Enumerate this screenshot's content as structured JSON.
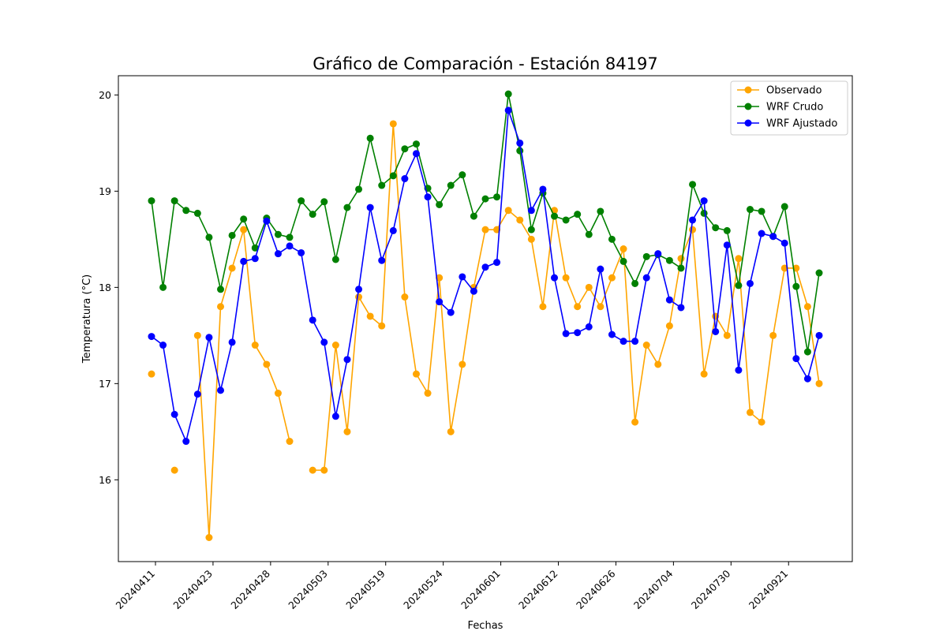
{
  "chart_data": {
    "type": "line",
    "title": "Gráfico de Comparación - Estación 84197",
    "xlabel": "Fechas",
    "ylabel": "Temperatura (°C)",
    "ylim": [
      15.15,
      20.2
    ],
    "yticks": [
      16,
      17,
      18,
      19,
      20
    ],
    "xtick_labels": [
      "20240411",
      "20240423",
      "20240428",
      "20240503",
      "20240519",
      "20240524",
      "20240601",
      "20240612",
      "20240626",
      "20240704",
      "20240730",
      "20240921"
    ],
    "xtick_every": 5,
    "grid": false,
    "legend_position": "top-right",
    "marker": "circle",
    "series": [
      {
        "name": "Observado",
        "color": "#ffa500",
        "values": [
          17.1,
          null,
          16.1,
          null,
          17.5,
          15.4,
          17.8,
          18.2,
          18.6,
          17.4,
          17.2,
          16.9,
          16.4,
          null,
          16.1,
          16.1,
          17.4,
          16.5,
          17.9,
          17.7,
          17.6,
          19.7,
          17.9,
          17.1,
          16.9,
          18.1,
          16.5,
          17.2,
          18.0,
          18.6,
          18.6,
          18.8,
          18.7,
          18.5,
          17.8,
          18.8,
          18.1,
          17.8,
          18.0,
          17.8,
          18.1,
          18.4,
          16.6,
          17.4,
          17.2,
          17.6,
          18.3,
          18.6,
          17.1,
          17.7,
          17.5,
          18.3,
          16.7,
          16.6,
          17.5,
          18.2,
          18.2,
          17.8,
          17.0
        ]
      },
      {
        "name": "WRF Crudo",
        "color": "#008000",
        "values": [
          18.9,
          18.0,
          18.9,
          18.8,
          18.77,
          18.52,
          17.98,
          18.54,
          18.71,
          18.41,
          18.72,
          18.55,
          18.52,
          18.9,
          18.76,
          18.89,
          18.29,
          18.83,
          19.02,
          19.55,
          19.06,
          19.16,
          19.44,
          19.49,
          19.03,
          18.86,
          19.06,
          19.17,
          18.74,
          18.92,
          18.94,
          20.01,
          19.42,
          18.6,
          18.98,
          18.74,
          18.7,
          18.76,
          18.55,
          18.79,
          18.5,
          18.27,
          18.04,
          18.32,
          18.34,
          18.28,
          18.2,
          19.07,
          18.77,
          18.62,
          18.59,
          18.02,
          18.81,
          18.79,
          18.53,
          18.84,
          18.01,
          17.33,
          18.15
        ]
      },
      {
        "name": "WRF Ajustado",
        "color": "#0000ff",
        "values": [
          17.49,
          17.4,
          16.68,
          16.4,
          16.89,
          17.48,
          16.93,
          17.43,
          18.27,
          18.3,
          18.69,
          18.35,
          18.43,
          18.36,
          17.66,
          17.43,
          16.66,
          17.25,
          17.98,
          18.83,
          18.28,
          18.59,
          19.13,
          19.39,
          18.94,
          17.85,
          17.74,
          18.11,
          17.96,
          18.21,
          18.26,
          19.84,
          19.5,
          18.8,
          19.02,
          18.1,
          17.52,
          17.53,
          17.59,
          18.19,
          17.51,
          17.44,
          17.44,
          18.1,
          18.35,
          17.87,
          17.79,
          18.7,
          18.9,
          17.54,
          18.44,
          17.14,
          18.04,
          18.56,
          18.53,
          18.46,
          17.26,
          17.05,
          17.5
        ]
      }
    ]
  }
}
